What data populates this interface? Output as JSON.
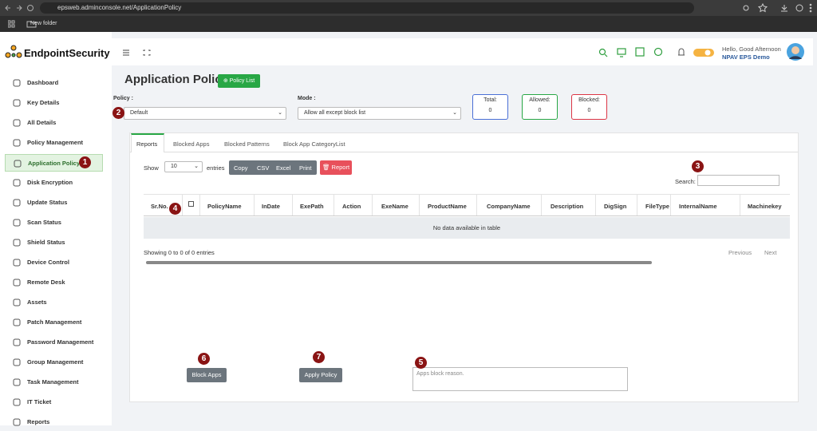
{
  "browser": {
    "url": "epsweb.adminconsole.net/ApplicationPolicy",
    "bookmark": "New folder"
  },
  "logo": "EndpointSecurity",
  "sidebar": {
    "items": [
      {
        "label": "Dashboard"
      },
      {
        "label": "Key Details"
      },
      {
        "label": "All Details"
      },
      {
        "label": "Policy Management"
      },
      {
        "label": "Application Policy",
        "marker": "1"
      },
      {
        "label": "Disk Encryption"
      },
      {
        "label": "Update Status"
      },
      {
        "label": "Scan Status"
      },
      {
        "label": "Shield Status"
      },
      {
        "label": "Device Control"
      },
      {
        "label": "Remote Desk"
      },
      {
        "label": "Assets"
      },
      {
        "label": "Patch Management"
      },
      {
        "label": "Password Management"
      },
      {
        "label": "Group Management"
      },
      {
        "label": "Task Management"
      },
      {
        "label": "IT Ticket"
      },
      {
        "label": "Reports"
      }
    ]
  },
  "header": {
    "greeting": "Hello, Good Afternoon",
    "user": "NPAV EPS Demo"
  },
  "page": {
    "title": "Application Policy",
    "policy_list_button": "Policy List",
    "policy": {
      "label": "Policy :",
      "value": "Default",
      "marker": "2"
    },
    "mode": {
      "label": "Mode :",
      "value": "Allow all except block list"
    },
    "stats": [
      {
        "label": "Total:",
        "value": "0"
      },
      {
        "label": "Allowed:",
        "value": "0"
      },
      {
        "label": "Blocked:",
        "value": "0"
      }
    ]
  },
  "tabs": [
    "Reports",
    "Blocked Apps",
    "Blocked Patterns",
    "Block App CategoryList"
  ],
  "table_controls": {
    "show": "Show",
    "length": "10",
    "entries": "entries",
    "buttons": [
      "Copy",
      "CSV",
      "Excel",
      "Print"
    ],
    "report": "Report",
    "search": "Search:",
    "search_marker": "3"
  },
  "table": {
    "columns": [
      "Sr.No.",
      "",
      "PolicyName",
      "InDate",
      "ExePath",
      "Action",
      "ExeName",
      "ProductName",
      "CompanyName",
      "Description",
      "DigSign",
      "FileType",
      "InternalName",
      "Machinekey"
    ],
    "column_marker": "4",
    "empty": "No data available in table",
    "info": "Showing 0 to 0 of 0 entries",
    "previous": "Previous",
    "next": "Next"
  },
  "actions": {
    "block_apps": "Block Apps",
    "block_marker": "6",
    "apply_policy": "Apply Policy",
    "apply_marker": "7",
    "reason_placeholder": "Apps block reason.",
    "reason_marker": "5"
  }
}
